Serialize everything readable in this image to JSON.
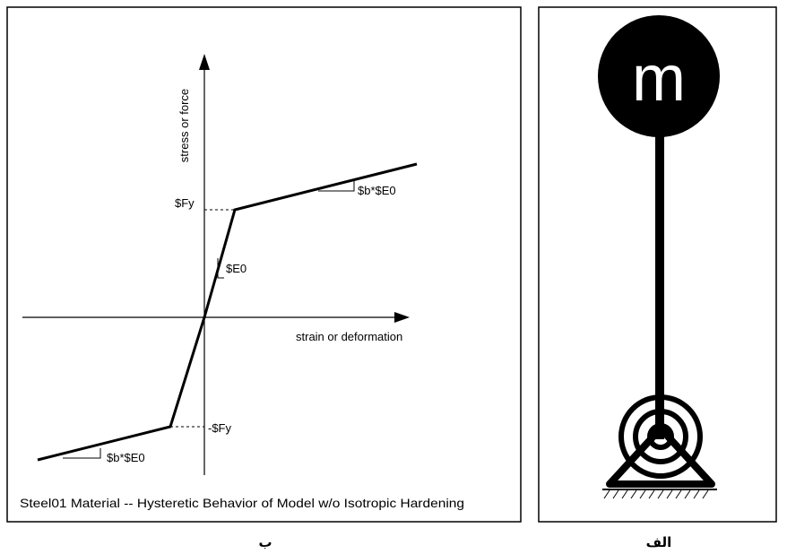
{
  "left_panel": {
    "y_axis_label": "stress or force",
    "x_axis_label": "strain or deformation",
    "fy_label": "$Fy",
    "neg_fy_label": "-$Fy",
    "e0_label": "$E0",
    "upper_slope_label": "$b*$E0",
    "lower_slope_label": "$b*$E0",
    "caption": "Steel01 Material -- Hysteretic Behavior of Model w/o Isotropic Hardening",
    "panel_label": "ب"
  },
  "right_panel": {
    "mass_label": "m",
    "panel_label": "الف"
  }
}
